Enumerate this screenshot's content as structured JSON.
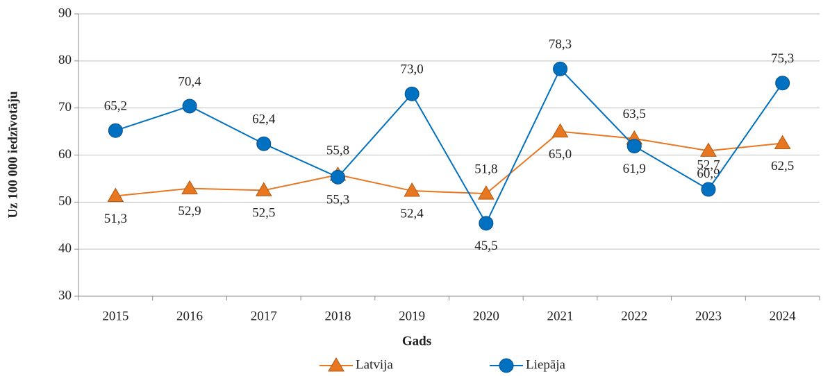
{
  "chart_data": {
    "type": "line",
    "x_label": "Gads",
    "y_label": "Uz 100 000 iedzīvotāju",
    "categories": [
      "2015",
      "2016",
      "2017",
      "2018",
      "2019",
      "2020",
      "2021",
      "2022",
      "2023",
      "2024"
    ],
    "series": [
      {
        "name": "Latvija",
        "color": "#e87722",
        "marker": "triangle",
        "values": [
          51.3,
          52.9,
          52.5,
          55.8,
          52.4,
          51.8,
          65.0,
          63.5,
          60.9,
          62.5
        ],
        "value_labels": [
          "51,3",
          "52,9",
          "52,5",
          "55,8",
          "52,4",
          "51,8",
          "65,0",
          "63,5",
          "60,9",
          "62,5"
        ]
      },
      {
        "name": "Liepāja",
        "color": "#0070c0",
        "marker": "circle",
        "values": [
          65.2,
          70.4,
          62.4,
          55.3,
          73.0,
          45.5,
          78.3,
          61.9,
          52.7,
          75.3
        ],
        "value_labels": [
          "65,2",
          "70,4",
          "62,4",
          "55,3",
          "73,0",
          "45,5",
          "78,3",
          "61,9",
          "52,7",
          "75,3"
        ]
      }
    ],
    "ylim": [
      30,
      90
    ],
    "yticks": [
      30,
      40,
      50,
      60,
      70,
      80,
      90
    ],
    "grid": true,
    "legend": "bottom"
  }
}
